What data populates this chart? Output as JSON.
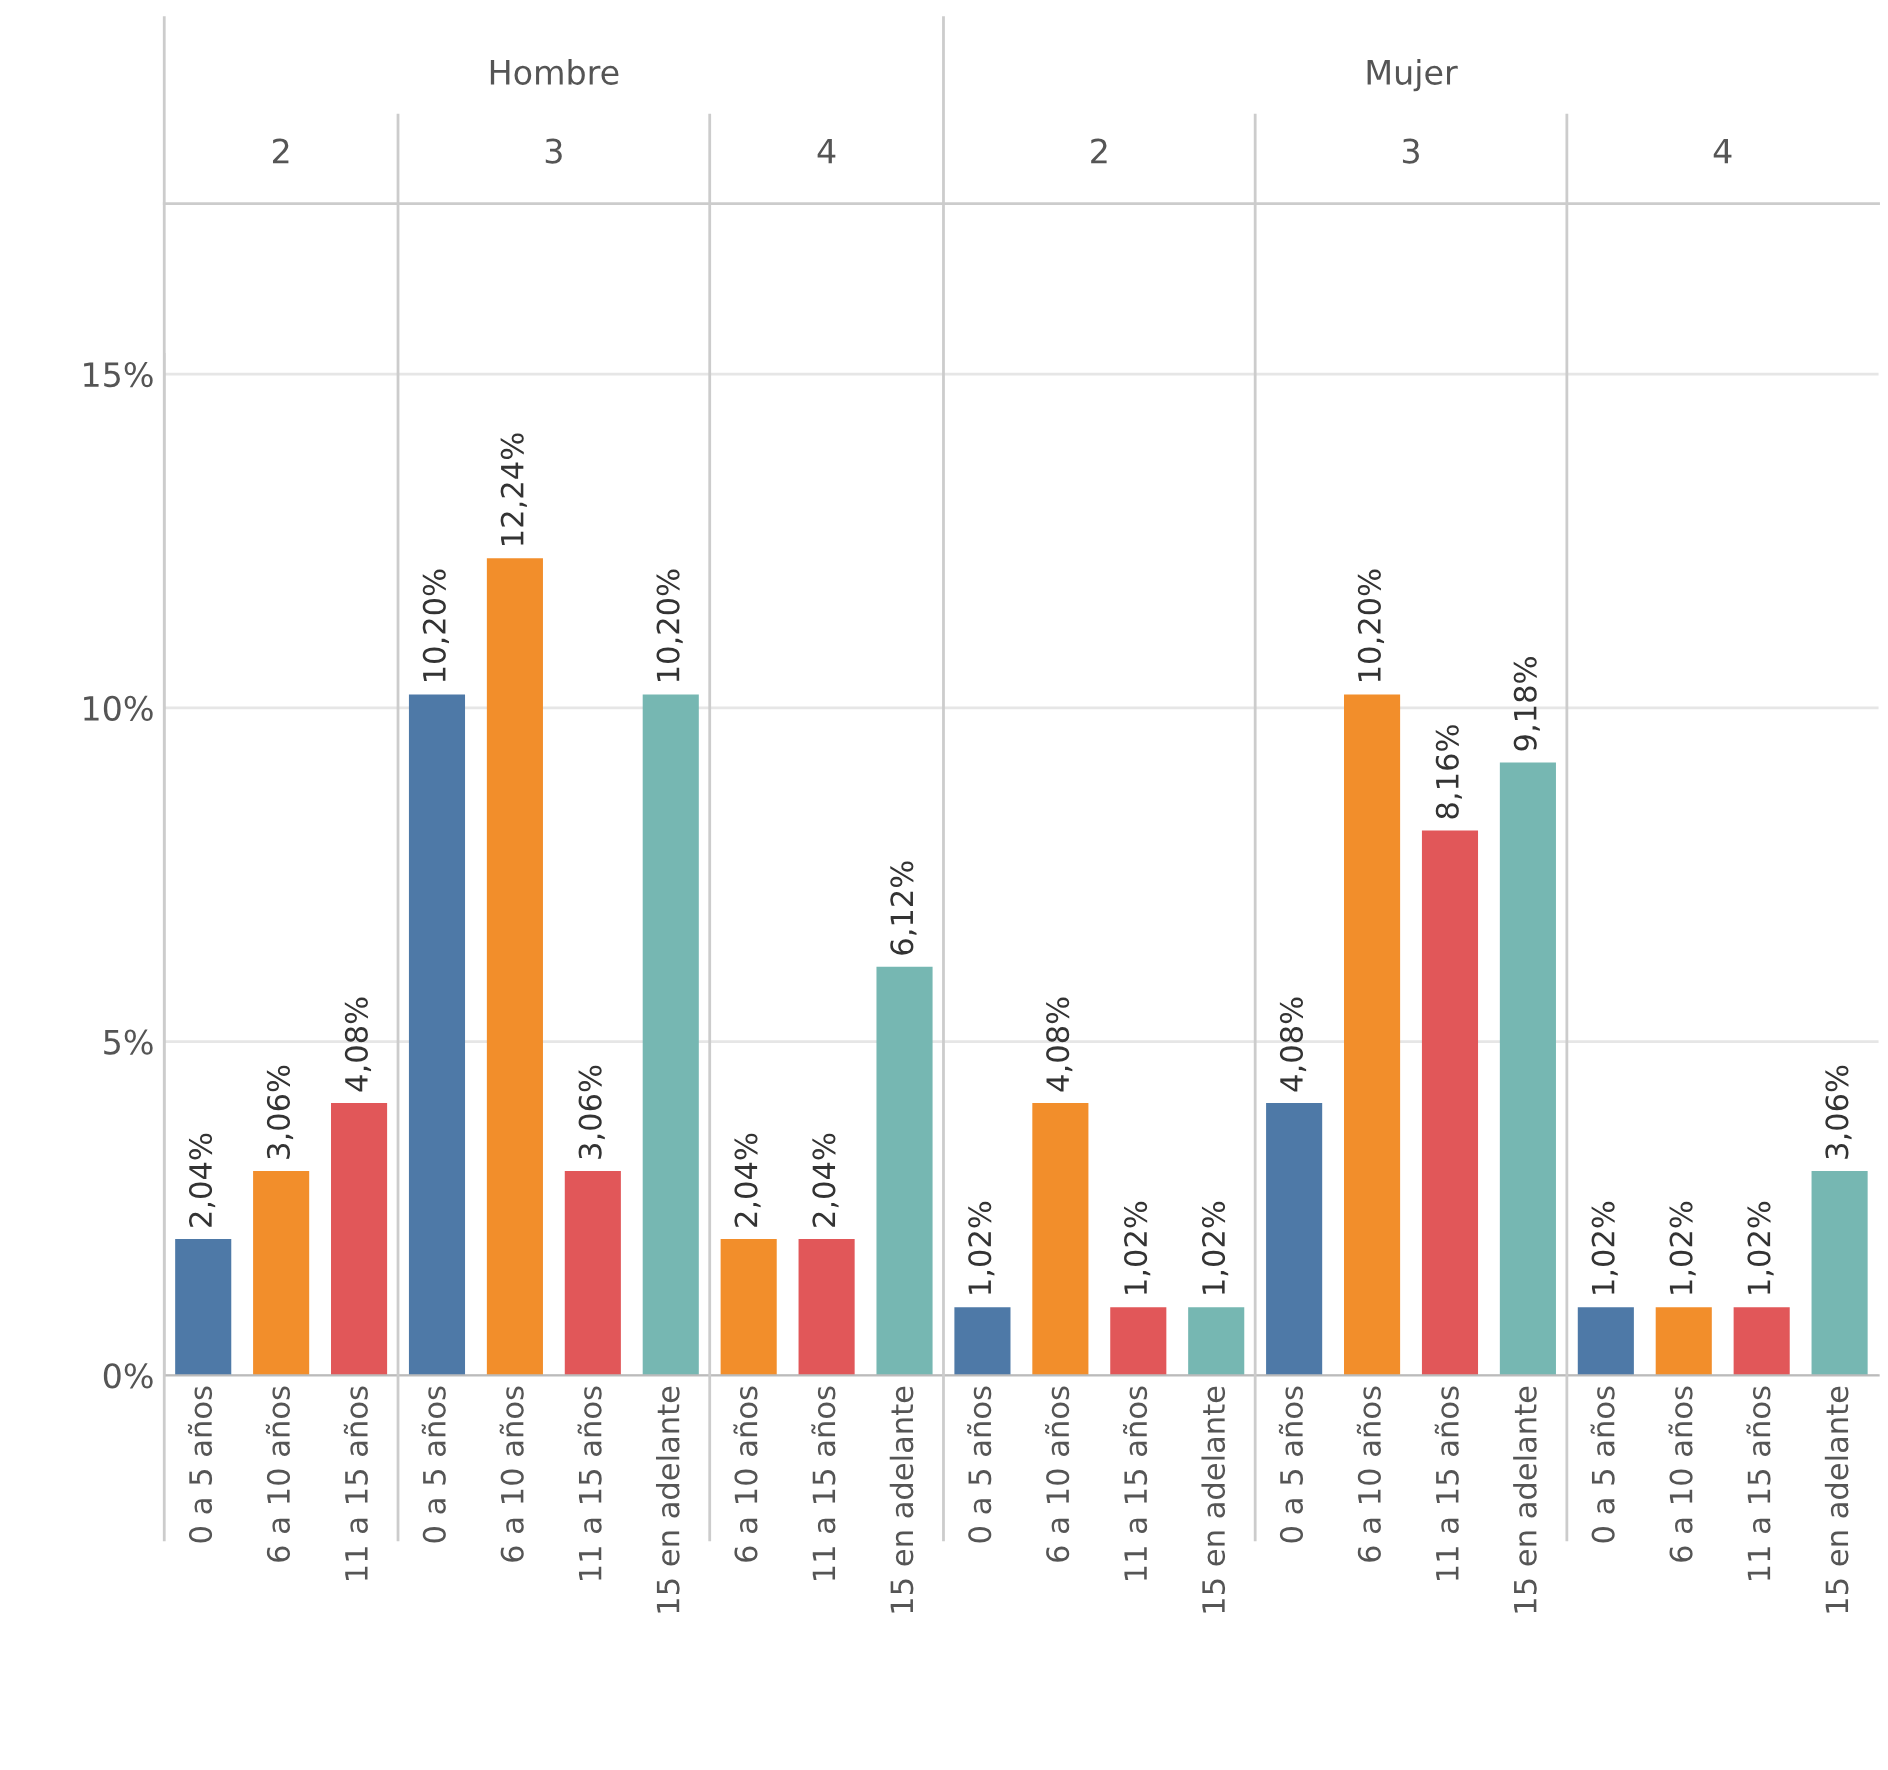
{
  "chart_data": {
    "type": "bar",
    "categories": [
      "0 a 5 años",
      "6 a 10 años",
      "11 a 15 años",
      "0 a 5 años",
      "6 a 10 años",
      "11 a 15 años",
      "15 en adelante",
      "6 a 10 años",
      "11 a 15 años",
      "15 en adelante",
      "0 a 5 años",
      "6 a 10 años",
      "11 a 15 años",
      "15 en adelante",
      "0 a 5 años",
      "6 a 10 años",
      "11 a 15 años",
      "15 en adelante",
      "0 a 5 años",
      "6 a 10 años",
      "11 a 15 años",
      "15 en adelante"
    ],
    "values": [
      2.04,
      3.06,
      4.08,
      10.2,
      12.24,
      3.06,
      10.2,
      2.04,
      2.04,
      6.12,
      1.02,
      4.08,
      1.02,
      1.02,
      4.08,
      10.2,
      8.16,
      9.18,
      1.02,
      1.02,
      1.02,
      3.06
    ],
    "value_labels": [
      "2,04%",
      "3,06%",
      "4,08%",
      "10,20%",
      "12,24%",
      "3,06%",
      "10,20%",
      "2,04%",
      "2,04%",
      "6,12%",
      "1,02%",
      "4,08%",
      "1,02%",
      "1,02%",
      "4,08%",
      "10,20%",
      "8,16%",
      "9,18%",
      "1,02%",
      "1,02%",
      "1,02%",
      "3,06%"
    ],
    "colors": [
      "#4e79a7",
      "#f28e2b",
      "#e15759",
      "#4e79a7",
      "#f28e2b",
      "#e15759",
      "#76b7b2",
      "#f28e2b",
      "#e15759",
      "#76b7b2",
      "#4e79a7",
      "#f28e2b",
      "#e15759",
      "#76b7b2",
      "#4e79a7",
      "#f28e2b",
      "#e15759",
      "#76b7b2",
      "#4e79a7",
      "#f28e2b",
      "#e15759",
      "#76b7b2"
    ],
    "ylim": [
      0,
      15.3
    ],
    "yticks": [
      {
        "value": 0,
        "label": "0%"
      },
      {
        "value": 5,
        "label": "5%"
      },
      {
        "value": 10,
        "label": "10%"
      },
      {
        "value": 15,
        "label": "15%"
      }
    ],
    "grid": "y",
    "annotations": [
      "Hombre",
      "Mujer",
      "2",
      "3",
      "4",
      "2",
      "3",
      "4"
    ]
  }
}
